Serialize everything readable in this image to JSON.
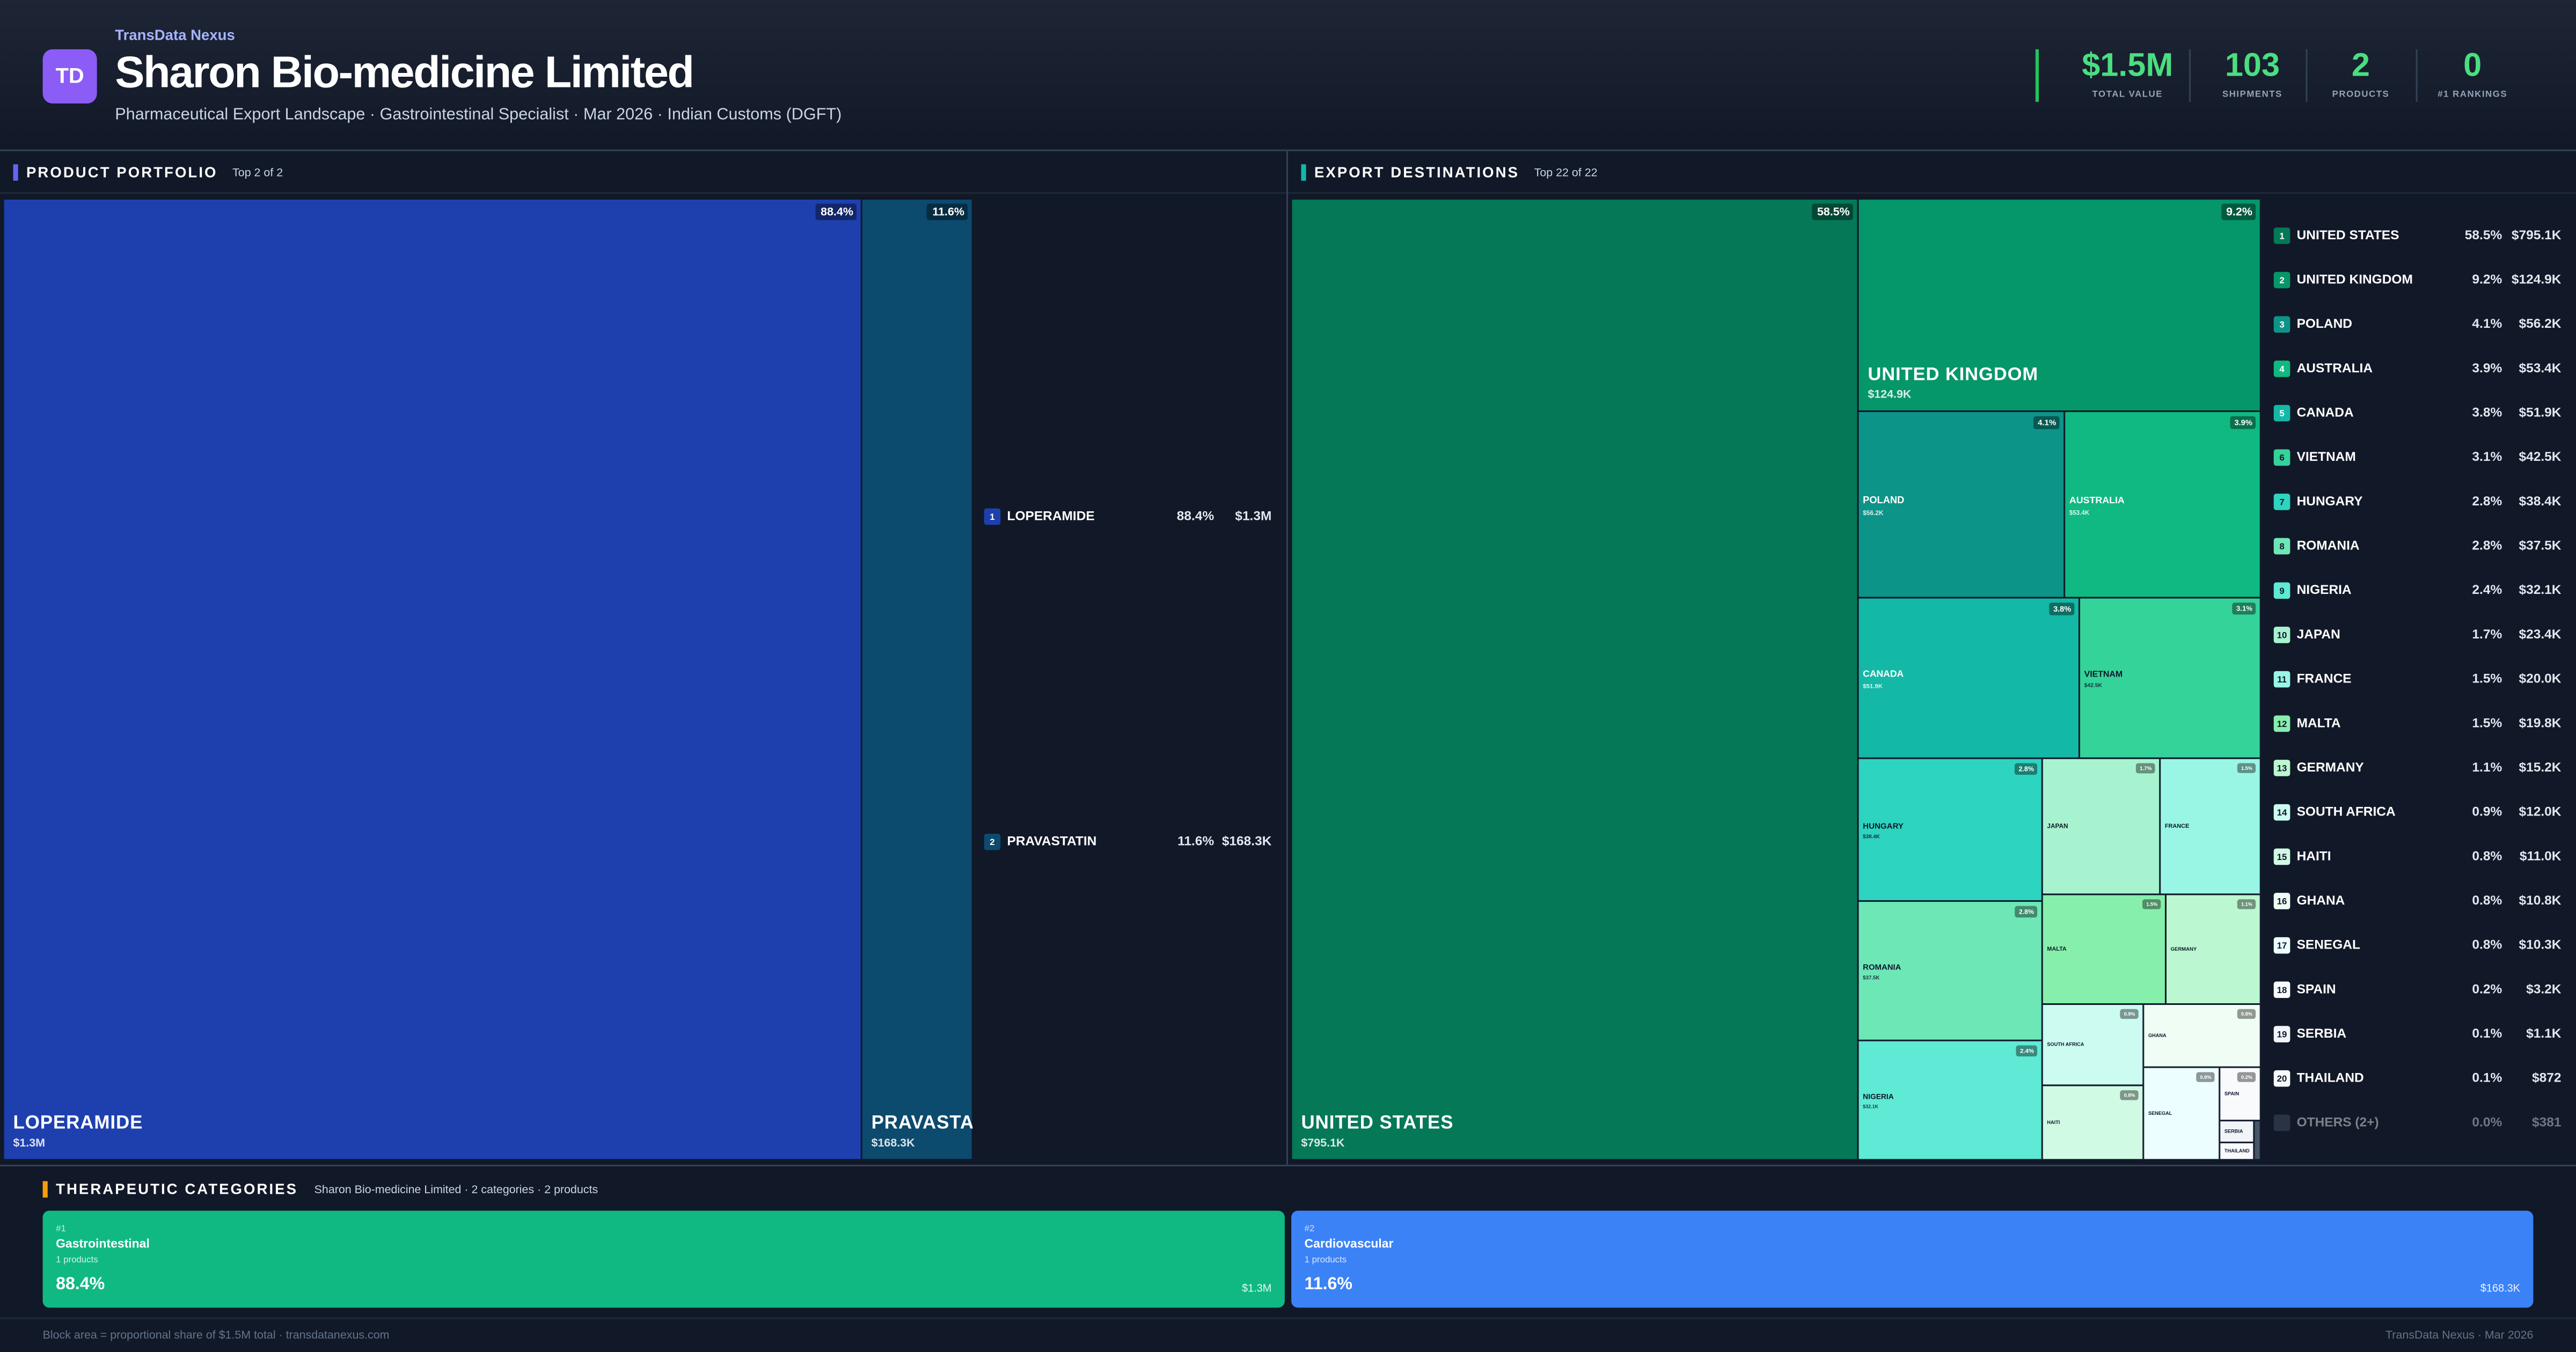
{
  "header": {
    "logo": "TD",
    "brand": "TransData Nexus",
    "title": "Sharon Bio-medicine Limited",
    "subtitle": "Pharmaceutical Export Landscape · Gastrointestinal Specialist · Mar 2026 · Indian Customs (DGFT)",
    "kpis": [
      {
        "value": "$1.5M",
        "label": "TOTAL VALUE"
      },
      {
        "value": "103",
        "label": "SHIPMENTS"
      },
      {
        "value": "2",
        "label": "PRODUCTS"
      },
      {
        "value": "0",
        "label": "#1 RANKINGS"
      }
    ]
  },
  "chart_data": [
    {
      "type": "treemap",
      "title": "PRODUCT PORTFOLIO",
      "subtitle": "Top 2 of 2",
      "accent": "#6366f1",
      "labels": [
        "LOPERAMIDE",
        "PRAVASTATIN"
      ],
      "values": [
        1300000,
        168300
      ],
      "value_labels": [
        "$1.3M",
        "$168.3K"
      ],
      "shares": [
        "88.4%",
        "11.6%"
      ],
      "ranks": [
        "1",
        "2"
      ],
      "colors": [
        "#1e40af",
        "#0c4a6e"
      ]
    },
    {
      "type": "treemap",
      "title": "EXPORT DESTINATIONS",
      "subtitle": "Top 22 of 22",
      "accent": "#14b8a6",
      "labels": [
        "UNITED STATES",
        "UNITED KINGDOM",
        "POLAND",
        "AUSTRALIA",
        "CANADA",
        "VIETNAM",
        "HUNGARY",
        "ROMANIA",
        "NIGERIA",
        "JAPAN",
        "FRANCE",
        "MALTA",
        "GERMANY",
        "SOUTH AFRICA",
        "HAITI",
        "GHANA",
        "SENEGAL",
        "SPAIN",
        "SERBIA",
        "THAILAND",
        "OTHERS (2+)"
      ],
      "values": [
        795100,
        124900,
        56200,
        53400,
        51900,
        42500,
        38400,
        37500,
        32100,
        23400,
        20000,
        19800,
        15200,
        12000,
        11000,
        10800,
        10300,
        3200,
        1100,
        872,
        381
      ],
      "value_labels": [
        "$795.1K",
        "$124.9K",
        "$56.2K",
        "$53.4K",
        "$51.9K",
        "$42.5K",
        "$38.4K",
        "$37.5K",
        "$32.1K",
        "$23.4K",
        "$20.0K",
        "$19.8K",
        "$15.2K",
        "$12.0K",
        "$11.0K",
        "$10.8K",
        "$10.3K",
        "$3.2K",
        "$1.1K",
        "$872",
        "$381"
      ],
      "shares": [
        "58.5%",
        "9.2%",
        "4.1%",
        "3.9%",
        "3.8%",
        "3.1%",
        "2.8%",
        "2.8%",
        "2.4%",
        "1.7%",
        "1.5%",
        "1.5%",
        "1.1%",
        "0.9%",
        "0.8%",
        "0.8%",
        "0.8%",
        "0.2%",
        "0.1%",
        "0.1%",
        "0.0%"
      ],
      "ranks": [
        "1",
        "2",
        "3",
        "4",
        "5",
        "6",
        "7",
        "8",
        "9",
        "10",
        "11",
        "12",
        "13",
        "14",
        "15",
        "16",
        "17",
        "18",
        "19",
        "20",
        null
      ],
      "colors": [
        "#047857",
        "#059669",
        "#0d9488",
        "#10b981",
        "#14b8a6",
        "#34d399",
        "#2dd4bf",
        "#6ee7b7",
        "#5eead4",
        "#a7f3d0",
        "#99f6e4",
        "#86efac",
        "#bbf7d0",
        "#ccfbf1",
        "#d1fae5",
        "#f0fdf4",
        "#ecfeff",
        "#f8fafc",
        "#f1f5f9",
        "#f8fafc",
        "#475569"
      ]
    }
  ],
  "categories_panel": {
    "title": "THERAPEUTIC CATEGORIES",
    "subtitle": "Sharon Bio-medicine Limited · 2 categories · 2 products",
    "cards": [
      {
        "rank": "#1",
        "name": "Gastrointestinal",
        "count": "1 products",
        "share": "88.4%",
        "value": "$1.3M",
        "color": "#10b981"
      },
      {
        "rank": "#2",
        "name": "Cardiovascular",
        "count": "1 products",
        "share": "11.6%",
        "value": "$168.3K",
        "color": "#3b82f6"
      }
    ]
  },
  "footer": {
    "left": "Block area = proportional share of $1.5M total · transdatanexus.com",
    "right": "TransData Nexus · Mar 2026"
  }
}
